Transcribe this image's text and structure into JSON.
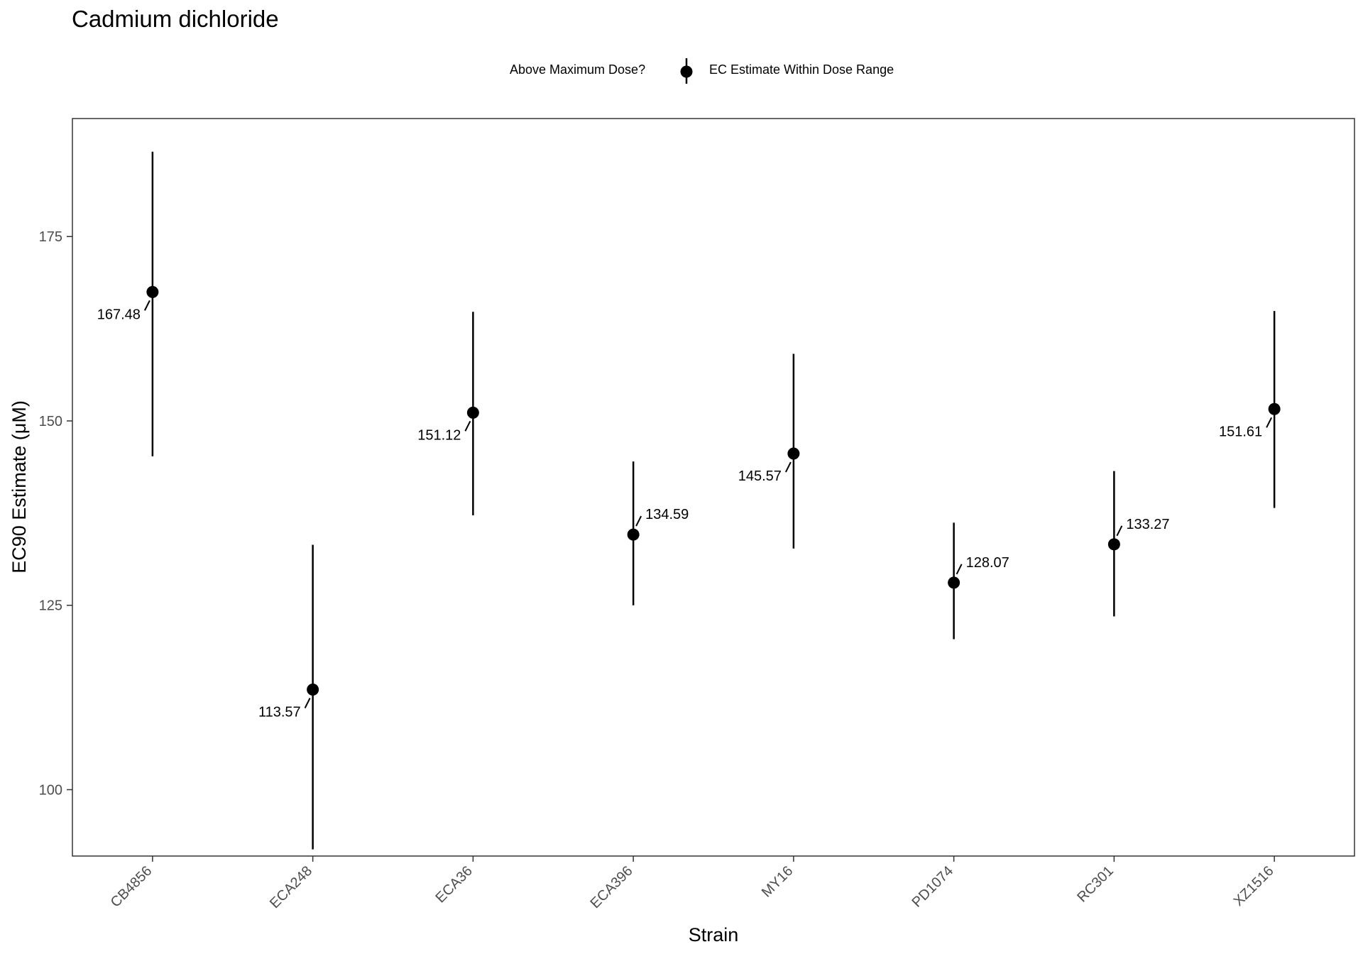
{
  "chart_data": {
    "type": "scatter",
    "title": "Cadmium dichloride",
    "xlabel": "Strain",
    "ylabel": "EC90 Estimate (μM)",
    "ylim": [
      91,
      191
    ],
    "yticks": [
      100,
      125,
      150,
      175
    ],
    "grid": false,
    "legend": {
      "title": "Above Maximum Dose?",
      "placement": "top-center",
      "entries": [
        {
          "label": "EC Estimate Within Dose Range",
          "color": "#000000"
        }
      ]
    },
    "categories": [
      "CB4856",
      "ECA248",
      "ECA36",
      "ECA396",
      "MY16",
      "PD1074",
      "RC301",
      "XZ1516"
    ],
    "points": [
      {
        "strain": "CB4856",
        "value": 167.48,
        "lower": 145.2,
        "upper": 186.5,
        "label": "167.48",
        "label_side": "left"
      },
      {
        "strain": "ECA248",
        "value": 113.57,
        "lower": 91.9,
        "upper": 133.2,
        "label": "113.57",
        "label_side": "left"
      },
      {
        "strain": "ECA36",
        "value": 151.12,
        "lower": 137.2,
        "upper": 164.8,
        "label": "151.12",
        "label_side": "left"
      },
      {
        "strain": "ECA396",
        "value": 134.59,
        "lower": 125.0,
        "upper": 144.5,
        "label": "134.59",
        "label_side": "right"
      },
      {
        "strain": "MY16",
        "value": 145.57,
        "lower": 132.7,
        "upper": 159.1,
        "label": "145.57",
        "label_side": "left"
      },
      {
        "strain": "PD1074",
        "value": 128.07,
        "lower": 120.4,
        "upper": 136.2,
        "label": "128.07",
        "label_side": "right"
      },
      {
        "strain": "RC301",
        "value": 133.27,
        "lower": 123.5,
        "upper": 143.2,
        "label": "133.27",
        "label_side": "right"
      },
      {
        "strain": "XZ1516",
        "value": 151.61,
        "lower": 138.2,
        "upper": 164.9,
        "label": "151.61",
        "label_side": "left"
      }
    ],
    "colors": {
      "point": "#000000",
      "axis": "#333333",
      "panel_border": "#333333",
      "tick_label": "#4d4d4d"
    }
  }
}
